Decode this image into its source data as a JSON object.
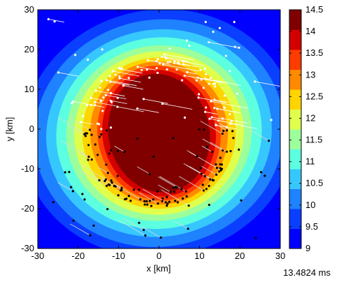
{
  "chart_data": {
    "type": "heatmap",
    "title": "",
    "xlabel": "x [km]",
    "ylabel": "y [km]",
    "xlim": [
      -30,
      30
    ],
    "ylim": [
      -30,
      30
    ],
    "x_ticks": [
      "-30",
      "-20",
      "-10",
      "0",
      "10",
      "20",
      "30"
    ],
    "y_ticks": [
      "-30",
      "-20",
      "-10",
      "0",
      "10",
      "20",
      "30"
    ],
    "colorbar": {
      "min": 9,
      "max": 14.5,
      "ticks": [
        "14.5",
        "14",
        "13.5",
        "13",
        "12.5",
        "12",
        "11.5",
        "11",
        "10.5",
        "10",
        "9.5",
        "9"
      ],
      "colors": [
        "#0000ff",
        "#0a3fff",
        "#1f82ff",
        "#36c7ff",
        "#5cffdf",
        "#9dff9b",
        "#e0ff4c",
        "#ffd400",
        "#ff8a00",
        "#ff3c00",
        "#d40000",
        "#800000"
      ]
    },
    "core": {
      "cx": -0.5,
      "cy": -0.5,
      "rx": 10.5,
      "ry": 13,
      "value": 14.5
    },
    "field_center": {
      "x": 0,
      "y": -1
    },
    "scatter_series": [
      {
        "name": "",
        "color": "#ffffff"
      },
      {
        "name": "",
        "color": "#000000"
      }
    ],
    "grid": false,
    "legend": "colorbar-right"
  },
  "timestamp": "13.4824 ms"
}
